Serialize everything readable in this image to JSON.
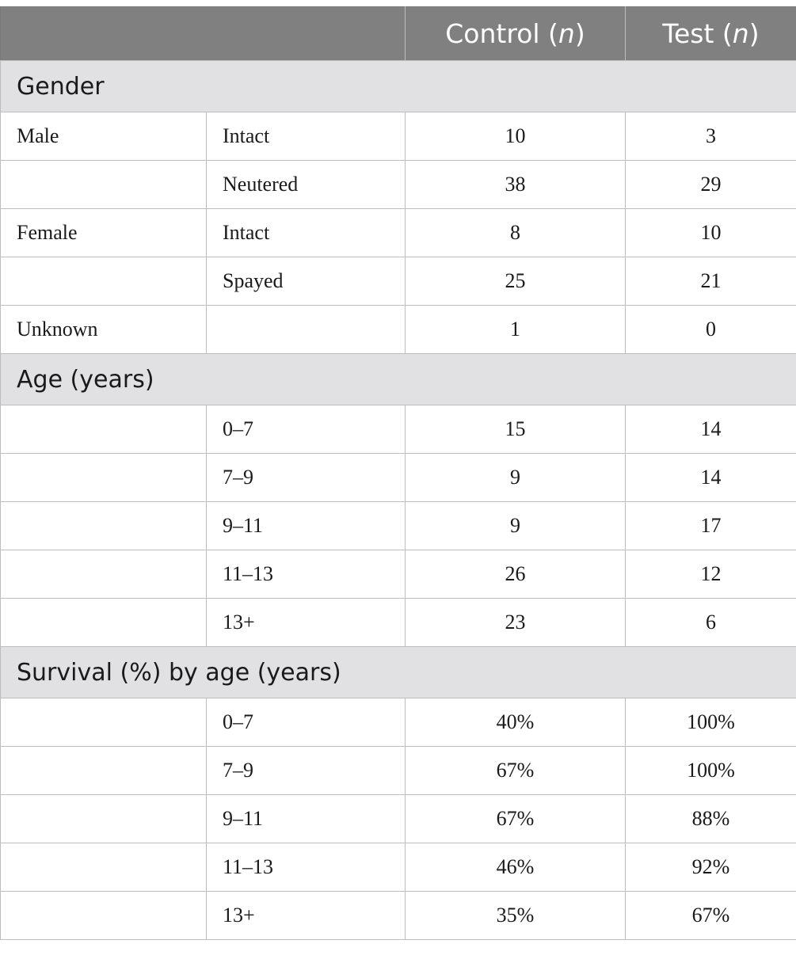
{
  "header": {
    "col1": "",
    "col2": "",
    "control_label": "Control (",
    "control_n": "n",
    "control_close": ")",
    "test_label": "Test (",
    "test_n": "n",
    "test_close": ")"
  },
  "sections": {
    "gender": {
      "title": "Gender",
      "rows": [
        {
          "group": "Male",
          "sub": "Intact",
          "control": "10",
          "test": "3"
        },
        {
          "group": "",
          "sub": "Neutered",
          "control": "38",
          "test": "29"
        },
        {
          "group": "Female",
          "sub": "Intact",
          "control": "8",
          "test": "10"
        },
        {
          "group": "",
          "sub": "Spayed",
          "control": "25",
          "test": "21"
        },
        {
          "group": "Unknown",
          "sub": "",
          "control": "1",
          "test": "0"
        }
      ]
    },
    "age": {
      "title": "Age (years)",
      "rows": [
        {
          "group": "",
          "sub": "0–7",
          "control": "15",
          "test": "14"
        },
        {
          "group": "",
          "sub": "7–9",
          "control": "9",
          "test": "14"
        },
        {
          "group": "",
          "sub": "9–11",
          "control": "9",
          "test": "17"
        },
        {
          "group": "",
          "sub": "11–13",
          "control": "26",
          "test": "12"
        },
        {
          "group": "",
          "sub": "13+",
          "control": "23",
          "test": "6"
        }
      ]
    },
    "survival": {
      "title": "Survival (%) by age (years)",
      "rows": [
        {
          "group": "",
          "sub": "0–7",
          "control": "40%",
          "test": "100%"
        },
        {
          "group": "",
          "sub": "7–9",
          "control": "67%",
          "test": "100%"
        },
        {
          "group": "",
          "sub": "9–11",
          "control": "67%",
          "test": "88%"
        },
        {
          "group": "",
          "sub": "11–13",
          "control": "46%",
          "test": "92%"
        },
        {
          "group": "",
          "sub": "13+",
          "control": "35%",
          "test": "67%"
        }
      ]
    }
  }
}
